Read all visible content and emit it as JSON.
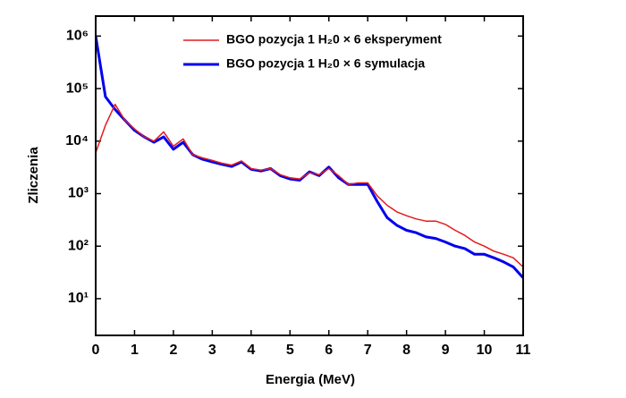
{
  "chart_data": {
    "type": "line",
    "xlabel": "Energia (MeV)",
    "ylabel": "Zliczenia",
    "x": [
      0,
      0.25,
      0.5,
      0.75,
      1,
      1.25,
      1.5,
      1.75,
      2,
      2.25,
      2.5,
      2.75,
      3,
      3.25,
      3.5,
      3.75,
      4,
      4.25,
      4.5,
      4.75,
      5,
      5.25,
      5.5,
      5.75,
      6,
      6.25,
      6.5,
      6.75,
      7,
      7.25,
      7.5,
      7.75,
      8,
      8.25,
      8.5,
      8.75,
      9,
      9.25,
      9.5,
      9.75,
      10,
      10.25,
      10.5,
      10.75,
      11
    ],
    "series": [
      {
        "name": "BGO pozycja 1 H₂0 × 6 eksperyment",
        "color": "#e41a1c",
        "width": 1.5,
        "values": [
          6000,
          20000,
          50000,
          25000,
          17000,
          12000,
          10000,
          15000,
          8000,
          11000,
          5500,
          4800,
          4300,
          3800,
          3500,
          4200,
          3000,
          2800,
          3000,
          2300,
          2000,
          1900,
          2500,
          2300,
          3000,
          2200,
          1500,
          1600,
          1600,
          900,
          600,
          450,
          380,
          330,
          300,
          300,
          260,
          200,
          160,
          120,
          100,
          80,
          70,
          60,
          40
        ]
      },
      {
        "name": "BGO pozycja 1 H₂0 × 6 symulacja",
        "color": "#0000ee",
        "width": 3,
        "values": [
          1000000,
          70000,
          40000,
          25000,
          16000,
          12000,
          9500,
          12000,
          7000,
          9500,
          5500,
          4500,
          4000,
          3600,
          3300,
          4000,
          2900,
          2700,
          3000,
          2200,
          1900,
          1800,
          2600,
          2200,
          3200,
          2000,
          1500,
          1500,
          1500,
          700,
          350,
          250,
          200,
          180,
          150,
          140,
          120,
          100,
          90,
          70,
          70,
          60,
          50,
          40,
          25
        ]
      }
    ],
    "xlim": [
      0,
      11
    ],
    "xticks": [
      0,
      1,
      2,
      3,
      4,
      5,
      6,
      7,
      8,
      9,
      10,
      11
    ],
    "ylim": [
      2,
      2400000
    ],
    "yscale": "log",
    "yticks": [
      {
        "value": 10,
        "label": "10¹"
      },
      {
        "value": 100,
        "label": "10²"
      },
      {
        "value": 1000,
        "label": "10³"
      },
      {
        "value": 10000,
        "label": "10⁴"
      },
      {
        "value": 100000,
        "label": "10⁵"
      },
      {
        "value": 1000000,
        "label": "10⁶"
      }
    ],
    "legend": "upper right",
    "grid": false
  }
}
